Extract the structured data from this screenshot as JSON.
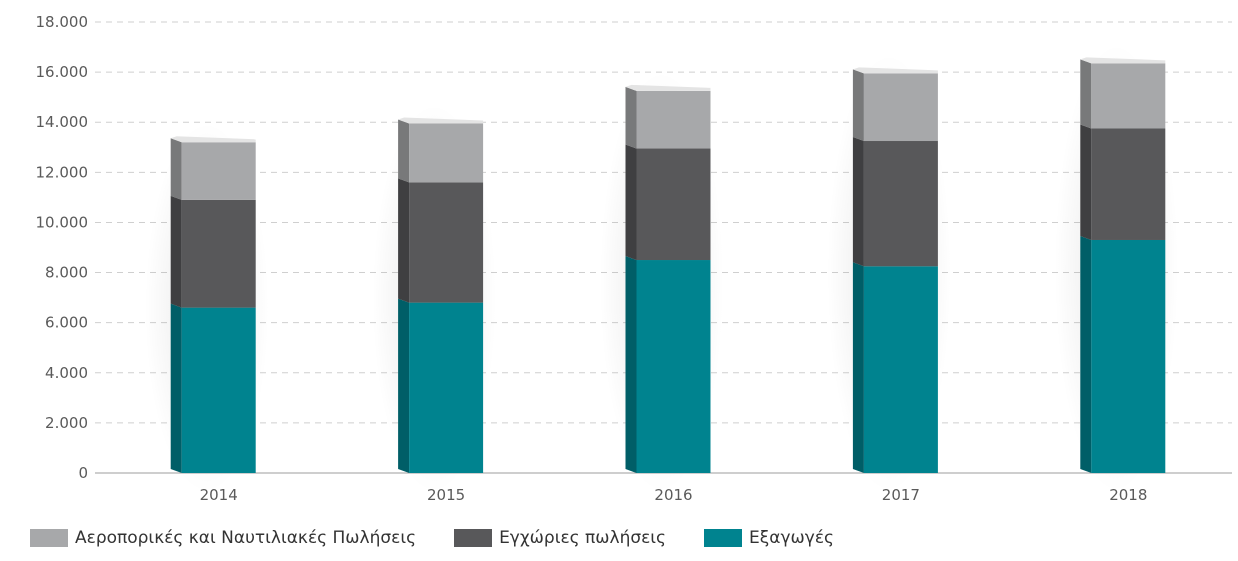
{
  "chart_data": {
    "type": "bar",
    "stacked": true,
    "categories": [
      "2014",
      "2015",
      "2016",
      "2017",
      "2018"
    ],
    "series": [
      {
        "name": "Εξαγωγές",
        "color": "#00838f",
        "values": [
          6600,
          6800,
          8500,
          8250,
          9300
        ]
      },
      {
        "name": "Εγχώριες πωλήσεις",
        "color": "#58585a",
        "values": [
          4300,
          4800,
          4450,
          5000,
          4450
        ]
      },
      {
        "name": "Αεροπορικές και Ναυτιλιακές Πωλήσεις",
        "color": "#a7a8aa",
        "values": [
          2300,
          2350,
          2300,
          2700,
          2600
        ]
      }
    ],
    "legend_order": [
      "Αεροπορικές και Ναυτιλιακές Πωλήσεις",
      "Εγχώριες πωλήσεις",
      "Εξαγωγές"
    ],
    "yticks": [
      "0",
      "2.000",
      "4.000",
      "6.000",
      "8.000",
      "10.000",
      "12.000",
      "14.000",
      "16.000",
      "18.000"
    ],
    "ylim": [
      0,
      18000
    ],
    "grid": "horizontal-dashed",
    "legend_position": "bottom-left"
  }
}
